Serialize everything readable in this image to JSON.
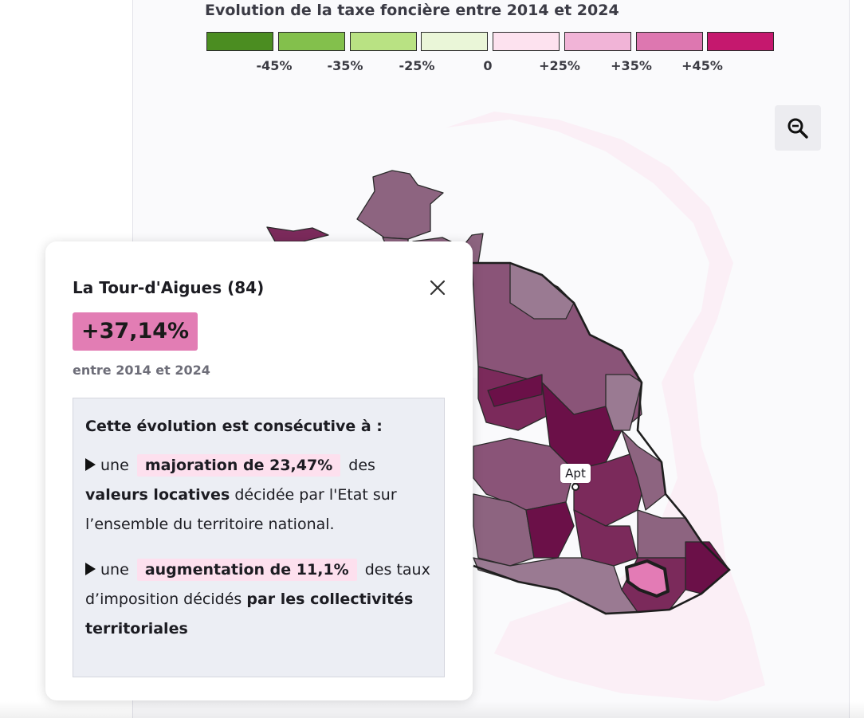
{
  "legend": {
    "title": "Evolution de la taxe foncière entre 2014 et 2024",
    "swatch_colors": [
      "#4b8d21",
      "#83c04c",
      "#b9e283",
      "#eaf6d8",
      "#fde2ef",
      "#f1b4d7",
      "#dd77b0",
      "#c5186e"
    ],
    "ticks": [
      "-45%",
      "-35%",
      "-25%",
      "0",
      "+25%",
      "+35%",
      "+45%"
    ]
  },
  "map": {
    "zoom_button_icon": "zoom-out-icon",
    "place_label": "Apt",
    "region_colors": [
      "#8d6480",
      "#7b2a5b",
      "#6b1048",
      "#8a5478",
      "#9a7a92",
      "#e37bb5"
    ],
    "selected_commune_color": "#e37bb5"
  },
  "popup": {
    "title": "La Tour-d'Aigues (84)",
    "value": "+37,14%",
    "value_color": "#e27db4",
    "period": "entre 2014 et 2024",
    "close_icon": "close-icon",
    "explanation": {
      "heading": "Cette évolution est consécutive à :",
      "item1": {
        "prefix": "une",
        "highlight": "majoration de 23,47%",
        "mid": "des",
        "bold1": "valeurs locatives",
        "rest": "décidée par l'Etat sur l’ensemble du territoire national."
      },
      "item2": {
        "prefix": "une",
        "highlight": "augmentation de 11,1%",
        "mid": "des taux d’imposition décidés",
        "bold1": "par les collectivités territoriales"
      }
    }
  }
}
